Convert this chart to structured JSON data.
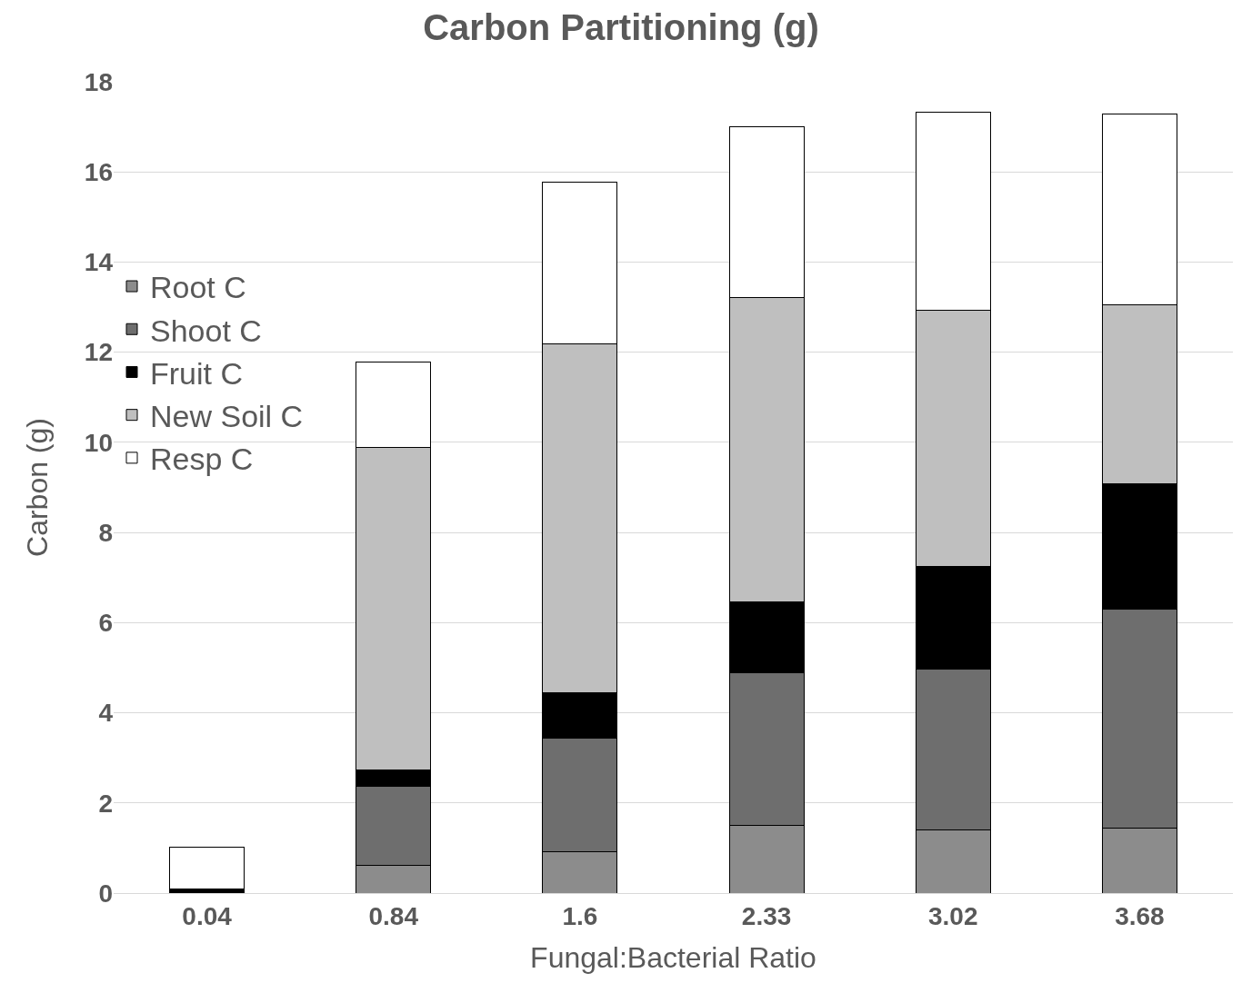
{
  "chart_data": {
    "type": "bar",
    "title": "Carbon Partitioning (g)",
    "xlabel": "Fungal:Bacterial Ratio",
    "ylabel": "Carbon (g)",
    "categories": [
      "0.04",
      "0.84",
      "1.6",
      "2.33",
      "3.02",
      "3.68"
    ],
    "stacked": true,
    "series": [
      {
        "name": "Root C",
        "color": "#8c8c8c",
        "values": [
          0,
          0.62,
          0.91,
          1.5,
          1.4,
          1.44
        ]
      },
      {
        "name": "Shoot C",
        "color": "#6e6e6e",
        "values": [
          0,
          1.75,
          2.53,
          3.38,
          3.56,
          4.86
        ]
      },
      {
        "name": "Fruit C",
        "color": "#000000",
        "values": [
          0.1,
          0.37,
          1.0,
          1.58,
          2.28,
          2.79
        ]
      },
      {
        "name": "New Soil C",
        "color": "#bfbfbf",
        "values": [
          0,
          7.14,
          7.74,
          6.75,
          5.7,
          3.96
        ]
      },
      {
        "name": "Resp C",
        "color": "#ffffff",
        "values": [
          0.91,
          1.91,
          3.6,
          3.79,
          4.39,
          4.23
        ]
      }
    ],
    "ylim": [
      0,
      18
    ],
    "yticks": [
      0,
      2,
      4,
      6,
      8,
      10,
      12,
      14,
      16,
      18
    ],
    "grid": "y",
    "legend": "left"
  }
}
